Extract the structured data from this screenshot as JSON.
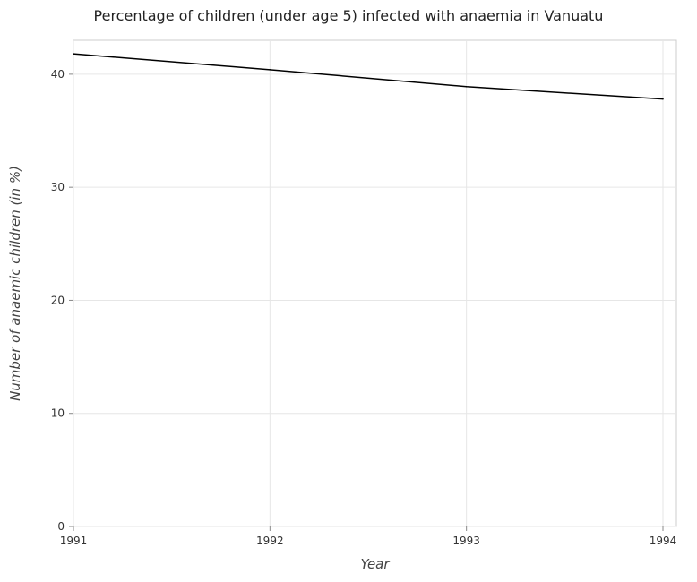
{
  "chart_data": {
    "type": "line",
    "title": "Percentage of children (under age 5) infected with anaemia in Vanuatu",
    "xlabel": "Year",
    "ylabel": "Number of anaemic children (in %)",
    "categories": [
      "1991",
      "1992",
      "1993",
      "1994"
    ],
    "series": [
      {
        "values": [
          41.8,
          40.4,
          38.9,
          37.8
        ]
      }
    ],
    "ylim": [
      0,
      43
    ],
    "yticks": [
      0,
      10,
      20,
      30,
      40
    ],
    "grid": true,
    "line_color": "#000000"
  }
}
